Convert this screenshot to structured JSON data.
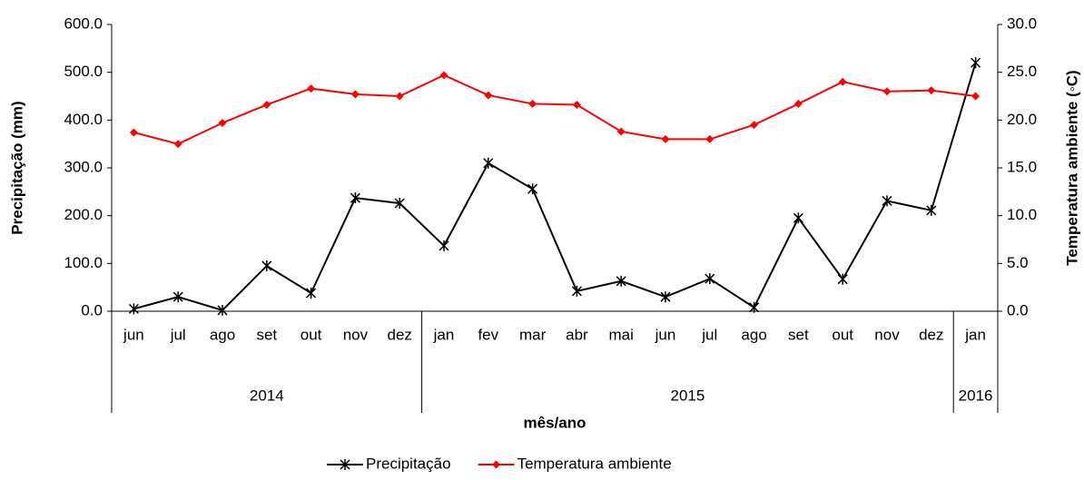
{
  "chart_data": {
    "type": "line",
    "x_label": "mês/ano",
    "y_label": "Precipitação (mm)",
    "y2_label": "Temperatura ambiente (◦C)",
    "groups": [
      {
        "label": "2014",
        "categories": [
          "jun",
          "jul",
          "ago",
          "set",
          "out",
          "nov",
          "dez"
        ]
      },
      {
        "label": "2015",
        "categories": [
          "jan",
          "fev",
          "mar",
          "abr",
          "mai",
          "jun",
          "jul",
          "ago",
          "set",
          "out",
          "nov",
          "dez"
        ]
      },
      {
        "label": "2016",
        "categories": [
          "jan"
        ]
      }
    ],
    "series": [
      {
        "name": "Precipitação",
        "color": "#000000",
        "marker": "asterisk",
        "values": [
          5,
          30,
          2,
          95,
          38,
          237,
          226,
          137,
          310,
          256,
          42,
          63,
          30,
          68,
          8,
          195,
          67,
          231,
          211,
          520
        ]
      },
      {
        "name": "Temperatura ambiente",
        "color": "#ff0000",
        "marker": "diamond",
        "axis": "y2",
        "values": [
          18.7,
          17.5,
          19.7,
          21.6,
          23.3,
          22.7,
          22.5,
          24.7,
          22.6,
          21.7,
          21.6,
          18.8,
          18.0,
          18.0,
          19.5,
          21.7,
          24.0,
          23.0,
          23.1,
          22.5
        ]
      }
    ],
    "ylim": [
      0,
      600
    ],
    "yticks": [
      {
        "value": 0,
        "label": "0.0"
      },
      {
        "value": 100,
        "label": "100.0"
      },
      {
        "value": 200,
        "label": "200.0"
      },
      {
        "value": 300,
        "label": "300.0"
      },
      {
        "value": 400,
        "label": "400.0"
      },
      {
        "value": 500,
        "label": "500.0"
      },
      {
        "value": 600,
        "label": "600.0"
      }
    ],
    "y2lim": [
      0,
      30
    ],
    "y2ticks": [
      {
        "value": 0,
        "label": "0.0"
      },
      {
        "value": 5,
        "label": "5.0"
      },
      {
        "value": 10,
        "label": "10.0"
      },
      {
        "value": 15,
        "label": "15.0"
      },
      {
        "value": 20,
        "label": "20.0"
      },
      {
        "value": 25,
        "label": "25.0"
      },
      {
        "value": 30,
        "label": "30.0"
      }
    ],
    "legend": "bottom"
  }
}
